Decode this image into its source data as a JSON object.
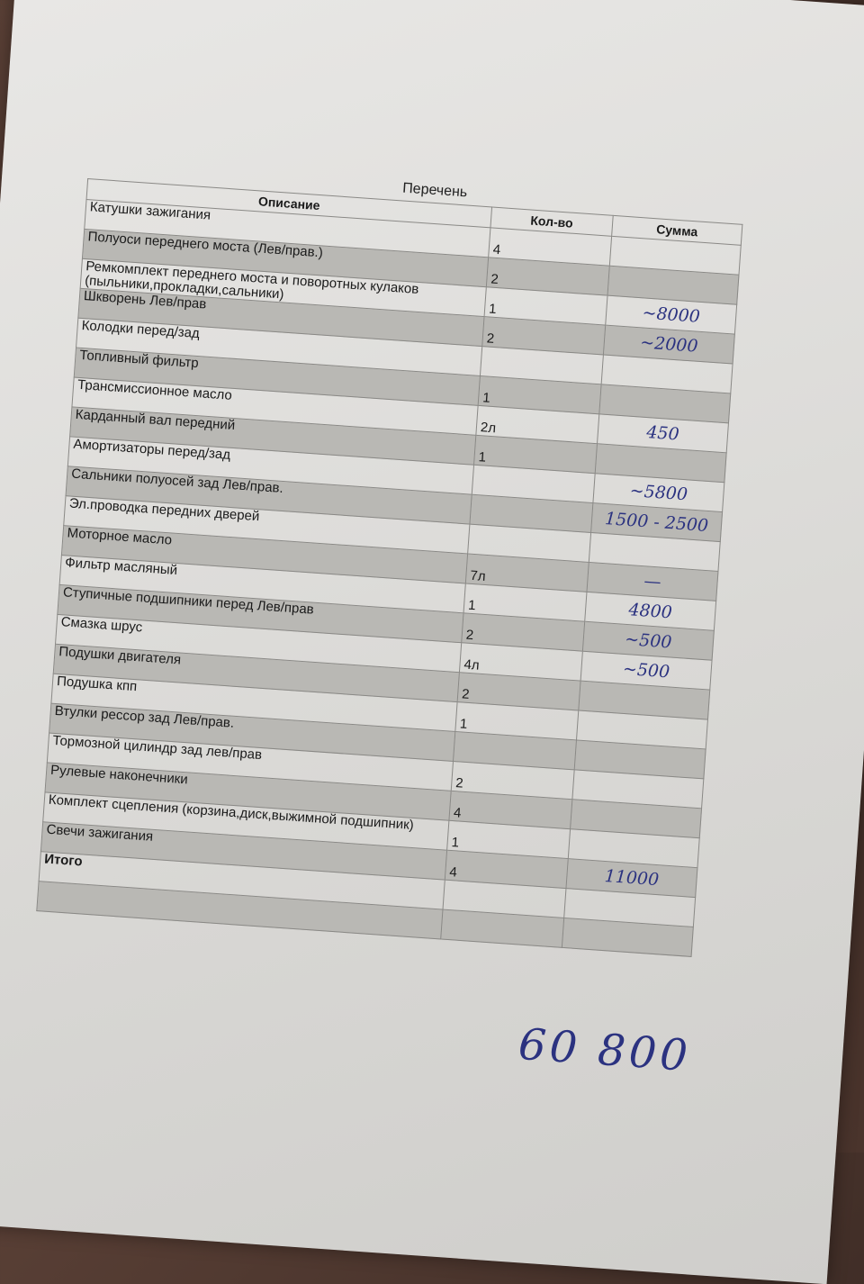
{
  "title": "Перечень",
  "headers": {
    "description": "Описание",
    "qty": "Кол-во",
    "sum": "Сумма"
  },
  "items": [
    {
      "description": "Катушки зажигания",
      "qty": "4",
      "sum": ""
    },
    {
      "description": "Полуоси переднего моста (Лев/прав.)",
      "qty": "2",
      "sum": ""
    },
    {
      "description": "Ремкомплект переднего моста и поворотных кулаков (пыльники,прокладки,сальники)",
      "qty": "1",
      "sum": "~8000"
    },
    {
      "description": "Шкворень Лев/прав",
      "qty": "2",
      "sum": "~2000"
    },
    {
      "description": "Колодки перед/зад",
      "qty": "",
      "sum": ""
    },
    {
      "description": "Топливный фильтр",
      "qty": "1",
      "sum": ""
    },
    {
      "description": "Трансмиссионное масло",
      "qty": "2л",
      "sum": "450"
    },
    {
      "description": "Карданный вал передний",
      "qty": "1",
      "sum": ""
    },
    {
      "description": "Амортизаторы перед/зад",
      "qty": "",
      "sum": "~5800"
    },
    {
      "description": "Сальники полуосей зад Лев/прав.",
      "qty": "",
      "sum": "1500 - 2500"
    },
    {
      "description": "Эл.проводка передних дверей",
      "qty": "",
      "sum": ""
    },
    {
      "description": "Моторное масло",
      "qty": "7л",
      "sum": "—"
    },
    {
      "description": "Фильтр масляный",
      "qty": "1",
      "sum": "4800"
    },
    {
      "description": "Ступичные подшипники перед Лев/прав",
      "qty": "2",
      "sum": "~500"
    },
    {
      "description": "Смазка шрус",
      "qty": "4л",
      "sum": "~500"
    },
    {
      "description": "Подушки двигателя",
      "qty": "2",
      "sum": ""
    },
    {
      "description": "Подушка кпп",
      "qty": "1",
      "sum": ""
    },
    {
      "description": "Втулки рессор зад Лев/прав.",
      "qty": "",
      "sum": ""
    },
    {
      "description": "Тормозной цилиндр зад лев/прав",
      "qty": "2",
      "sum": ""
    },
    {
      "description": "Рулевые наконечники",
      "qty": "4",
      "sum": ""
    },
    {
      "description": "Комплект сцепления (корзина,диск,выжимной подшипник)",
      "qty": "1",
      "sum": ""
    },
    {
      "description": "Свечи зажигания",
      "qty": "4",
      "sum": "11000"
    }
  ],
  "total_label": "Итого",
  "handwritten_total": "60 800"
}
